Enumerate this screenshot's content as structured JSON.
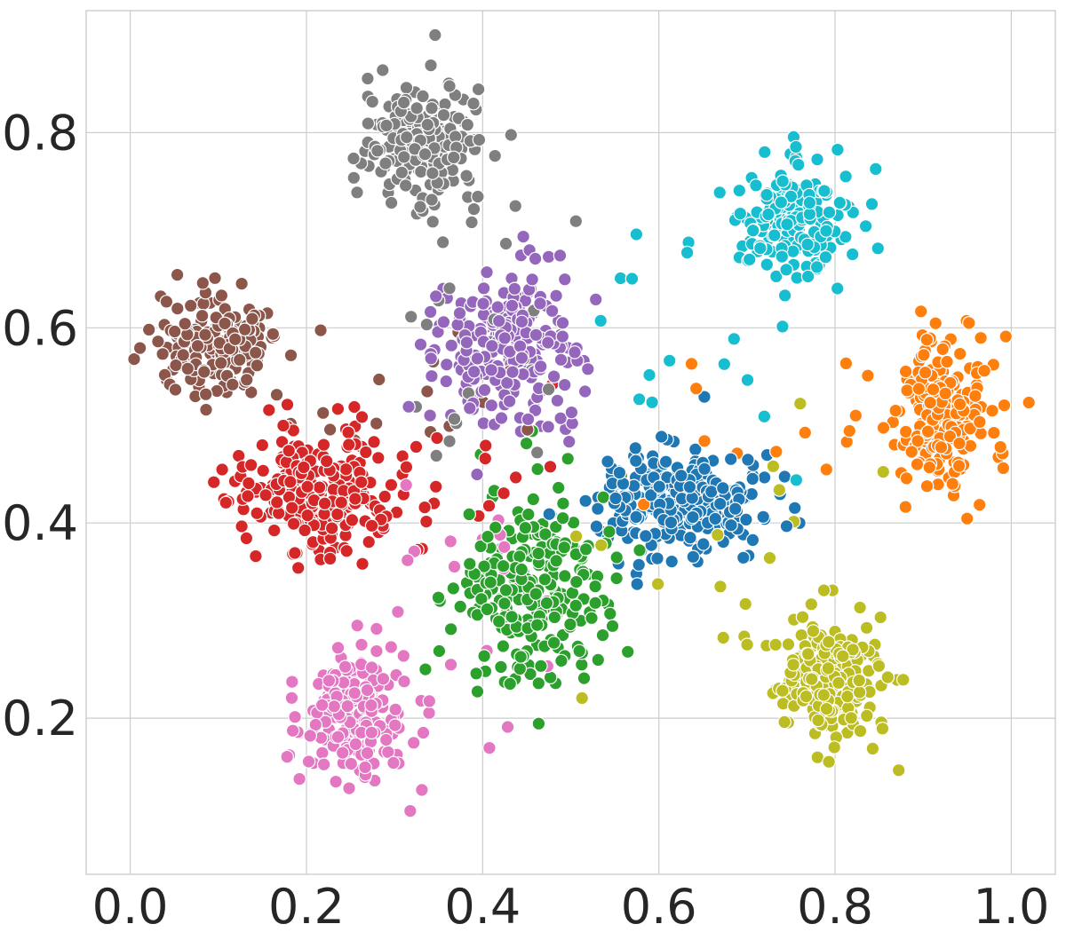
{
  "chart_data": {
    "type": "scatter",
    "title": "",
    "xlabel": "",
    "ylabel": "",
    "xlim": [
      -0.05,
      1.05
    ],
    "ylim": [
      0.04,
      0.925
    ],
    "grid": true,
    "legend": "none",
    "x_ticks": [
      {
        "value": 0.0,
        "label": "0.0"
      },
      {
        "value": 0.2,
        "label": "0.2"
      },
      {
        "value": 0.4,
        "label": "0.4"
      },
      {
        "value": 0.6,
        "label": "0.6"
      },
      {
        "value": 0.8,
        "label": "0.8"
      },
      {
        "value": 1.0,
        "label": "1.0"
      }
    ],
    "y_ticks": [
      {
        "value": 0.2,
        "label": "0.2"
      },
      {
        "value": 0.4,
        "label": "0.4"
      },
      {
        "value": 0.6,
        "label": "0.6"
      },
      {
        "value": 0.8,
        "label": "0.8"
      }
    ],
    "series": [
      {
        "color": "#1f77b4",
        "center": [
          0.63,
          0.42
        ],
        "spread": [
          0.085,
          0.05
        ],
        "count": 260
      },
      {
        "color": "#ff7f0e",
        "center": [
          0.925,
          0.515
        ],
        "spread": [
          0.05,
          0.07
        ],
        "count": 230
      },
      {
        "color": "#2ca02c",
        "center": [
          0.46,
          0.33
        ],
        "spread": [
          0.075,
          0.085
        ],
        "count": 250
      },
      {
        "color": "#d62728",
        "center": [
          0.21,
          0.43
        ],
        "spread": [
          0.085,
          0.06
        ],
        "count": 260
      },
      {
        "color": "#9467bd",
        "center": [
          0.43,
          0.585
        ],
        "spread": [
          0.07,
          0.065
        ],
        "count": 240
      },
      {
        "color": "#8c564b",
        "center": [
          0.1,
          0.585
        ],
        "spread": [
          0.065,
          0.045
        ],
        "count": 200
      },
      {
        "color": "#e377c2",
        "center": [
          0.255,
          0.2
        ],
        "spread": [
          0.055,
          0.06
        ],
        "count": 220
      },
      {
        "color": "#7f7f7f",
        "center": [
          0.33,
          0.79
        ],
        "spread": [
          0.06,
          0.055
        ],
        "count": 230
      },
      {
        "color": "#bcbd22",
        "center": [
          0.8,
          0.24
        ],
        "spread": [
          0.055,
          0.055
        ],
        "count": 230
      },
      {
        "color": "#17becf",
        "center": [
          0.755,
          0.71
        ],
        "spread": [
          0.055,
          0.05
        ],
        "count": 220
      }
    ]
  }
}
